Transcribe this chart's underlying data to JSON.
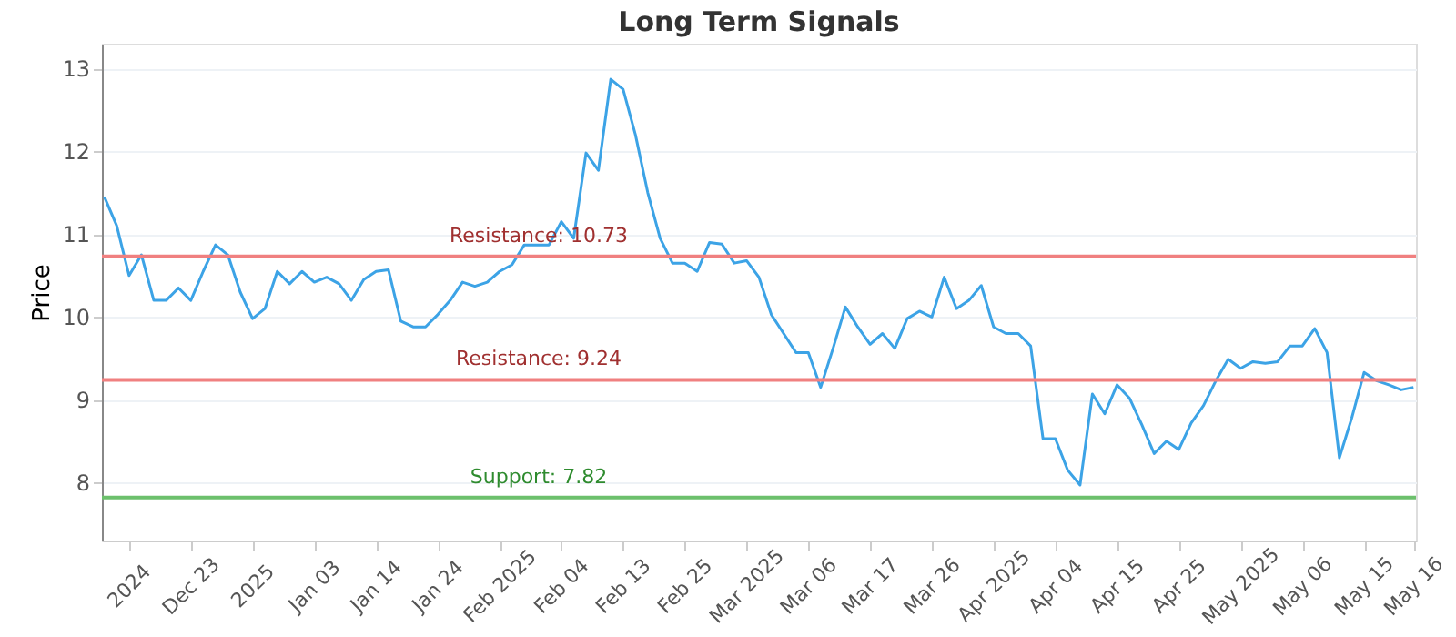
{
  "chart_data": {
    "type": "line",
    "title": "Long Term Signals",
    "ylabel": "Price",
    "categories": [
      null,
      null,
      "2024",
      null,
      null,
      null,
      null,
      "Dec 23",
      null,
      null,
      null,
      null,
      "2025",
      null,
      null,
      null,
      null,
      "Jan 03",
      null,
      null,
      null,
      null,
      "Jan 14",
      null,
      null,
      null,
      null,
      "Jan 24",
      null,
      null,
      null,
      null,
      "Feb 2025",
      null,
      null,
      null,
      null,
      "Feb 04",
      null,
      null,
      null,
      null,
      "Feb 13",
      null,
      null,
      null,
      null,
      "Feb 25",
      null,
      null,
      null,
      null,
      "Mar 2025",
      null,
      null,
      null,
      null,
      "Mar 06",
      null,
      null,
      null,
      null,
      "Mar 17",
      null,
      null,
      null,
      null,
      "Mar 26",
      null,
      null,
      null,
      null,
      "Apr 2025",
      null,
      null,
      null,
      null,
      "Apr 04",
      null,
      null,
      null,
      null,
      "Apr 15",
      null,
      null,
      null,
      null,
      "Apr 25",
      null,
      null,
      null,
      null,
      "May 2025",
      null,
      null,
      null,
      null,
      "May 06",
      null,
      null,
      null,
      null,
      "May 15",
      null,
      null,
      null,
      "May 16"
    ],
    "series": [
      {
        "color": "#3ca3e6",
        "values": [
          11.45,
          11.1,
          10.5,
          10.75,
          10.2,
          10.2,
          10.35,
          10.2,
          10.55,
          10.87,
          10.75,
          10.3,
          9.98,
          10.1,
          10.55,
          10.4,
          10.55,
          10.42,
          10.48,
          10.4,
          10.2,
          10.45,
          10.55,
          10.57,
          9.95,
          9.88,
          9.88,
          10.03,
          10.2,
          10.42,
          10.37,
          10.42,
          10.55,
          10.63,
          10.87,
          10.87,
          10.87,
          11.15,
          10.95,
          11.98,
          11.77,
          12.87,
          12.75,
          12.2,
          11.5,
          10.95,
          10.65,
          10.65,
          10.55,
          10.9,
          10.88,
          10.65,
          10.68,
          10.48,
          10.03,
          9.8,
          9.57,
          9.57,
          9.15,
          9.62,
          10.12,
          9.88,
          9.67,
          9.8,
          9.62,
          9.98,
          10.07,
          10.0,
          10.48,
          10.1,
          10.2,
          10.38,
          9.88,
          9.8,
          9.8,
          9.65,
          8.53,
          8.53,
          8.15,
          7.97,
          9.07,
          8.83,
          9.18,
          9.02,
          8.7,
          8.35,
          8.5,
          8.4,
          8.72,
          8.93,
          9.23,
          9.49,
          9.38,
          9.46,
          9.44,
          9.46,
          9.65,
          9.65,
          9.86,
          9.57,
          8.3,
          8.78,
          9.33,
          9.23,
          9.18,
          9.12,
          9.15
        ]
      }
    ],
    "ylim": [
      7.3,
      13.3
    ],
    "yticks": [
      8,
      9,
      10,
      11,
      12,
      13
    ],
    "grid": "y",
    "marker": "none",
    "line_style": "solid",
    "ref_lines": [
      {
        "axis": "y",
        "value": 10.73,
        "label": "Resistance: 10.73",
        "color": "#f08080"
      },
      {
        "axis": "y",
        "value": 9.24,
        "label": "Resistance: 9.24",
        "color": "#f08080"
      },
      {
        "axis": "y",
        "value": 7.82,
        "label": "Support: 7.82",
        "color": "#6cc06c"
      }
    ]
  }
}
